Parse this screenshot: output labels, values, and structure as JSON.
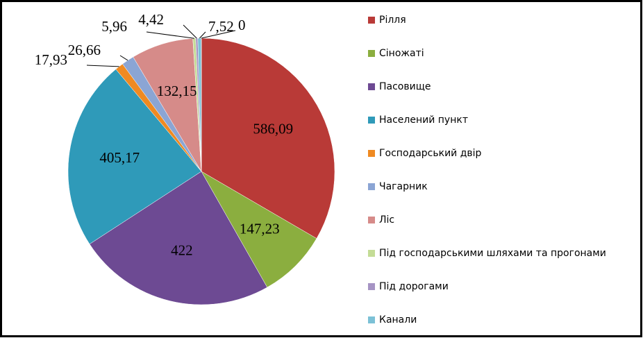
{
  "chart_data": {
    "type": "pie",
    "categories": [
      "Рілля",
      "Сіножаті",
      "Пасовище",
      "Населений пункт",
      "Господарський двір",
      "Чагарник",
      "Ліс",
      "Під господарськими шляхами та прогонами",
      "Під дорогами",
      "Канали",
      null
    ],
    "values": [
      586.09,
      147.23,
      422,
      405.17,
      17.93,
      26.66,
      132.15,
      5.96,
      4.42,
      7.52,
      0
    ],
    "value_labels": [
      "586,09",
      "147,23",
      "422",
      "405,17",
      "17,93",
      "26,66",
      "132,15",
      "5,96",
      "4,42",
      "7,52",
      "0"
    ],
    "colors": [
      "#b93a37",
      "#8bae3f",
      "#6d4a93",
      "#2f9ab9",
      "#ef8a22",
      "#8ba5d4",
      "#d68b89",
      "#c4dc96",
      "#a694c4",
      "#7cc1d6",
      "#f7b985"
    ],
    "legend": "right"
  }
}
